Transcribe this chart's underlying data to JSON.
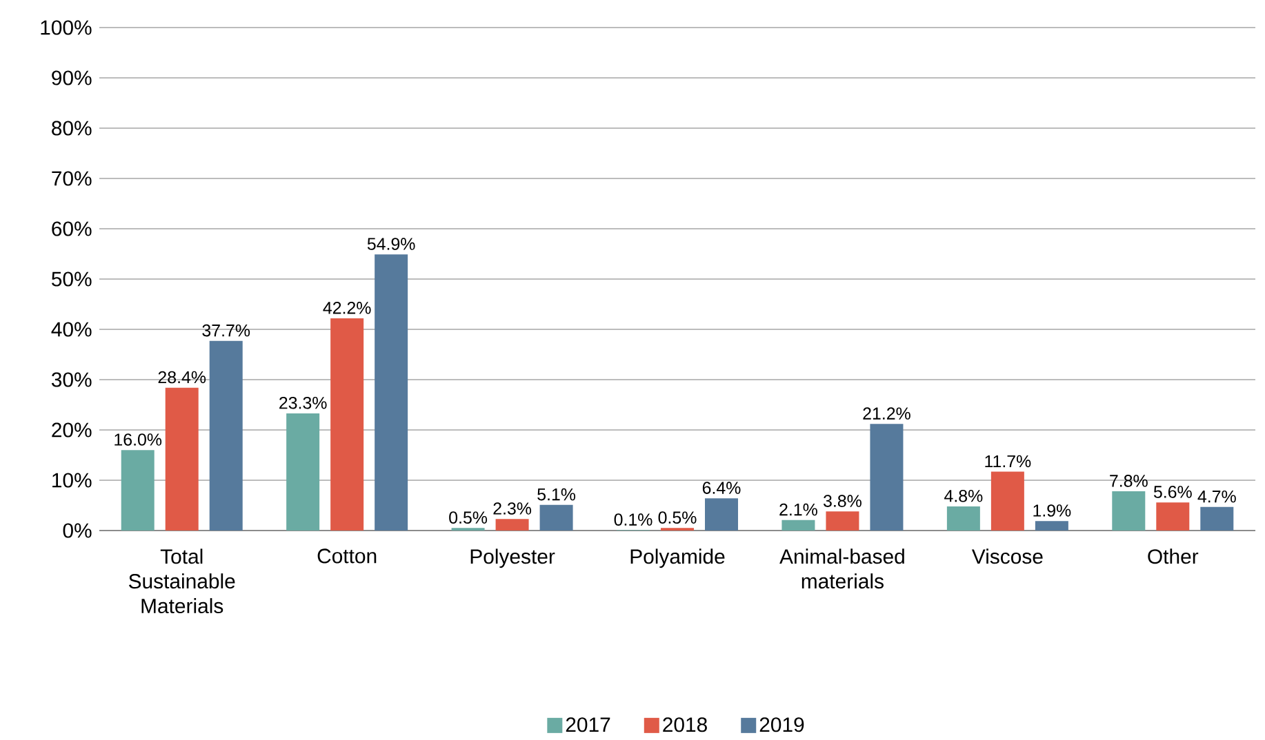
{
  "chart_data": {
    "type": "bar",
    "categories": [
      "Total Sustainable Materials",
      "Cotton",
      "Polyester",
      "Polyamide",
      "Animal-based materials",
      "Viscose",
      "Other"
    ],
    "series": [
      {
        "name": "2017",
        "color": "#6aaba3",
        "values": [
          16.0,
          23.3,
          0.5,
          0.1,
          2.1,
          4.8,
          7.8
        ],
        "value_labels": [
          "16.0%",
          "23.3%",
          "0.5%",
          "0.1%",
          "2.1%",
          "4.8%",
          "7.8%"
        ]
      },
      {
        "name": "2018",
        "color": "#e05a47",
        "values": [
          28.4,
          42.2,
          2.3,
          0.5,
          3.8,
          11.7,
          5.6
        ],
        "value_labels": [
          "28.4%",
          "42.2%",
          "2.3%",
          "0.5%",
          "3.8%",
          "11.7%",
          "5.6%"
        ]
      },
      {
        "name": "2019",
        "color": "#567a9c",
        "values": [
          37.7,
          54.9,
          5.1,
          6.4,
          21.2,
          1.9,
          4.7
        ],
        "value_labels": [
          "37.7%",
          "54.9%",
          "5.1%",
          "6.4%",
          "21.2%",
          "1.9%",
          "4.7%"
        ]
      }
    ],
    "ylim": [
      0,
      100
    ],
    "yticks": [
      {
        "value": 0,
        "label": "0%"
      },
      {
        "value": 10,
        "label": "10%"
      },
      {
        "value": 20,
        "label": "20%"
      },
      {
        "value": 30,
        "label": "30%"
      },
      {
        "value": 40,
        "label": "40%"
      },
      {
        "value": 50,
        "label": "50%"
      },
      {
        "value": 60,
        "label": "60%"
      },
      {
        "value": 70,
        "label": "70%"
      },
      {
        "value": 80,
        "label": "80%"
      },
      {
        "value": 90,
        "label": "90%"
      },
      {
        "value": 100,
        "label": "100%"
      }
    ],
    "grid": "y",
    "legend": "bottom"
  }
}
